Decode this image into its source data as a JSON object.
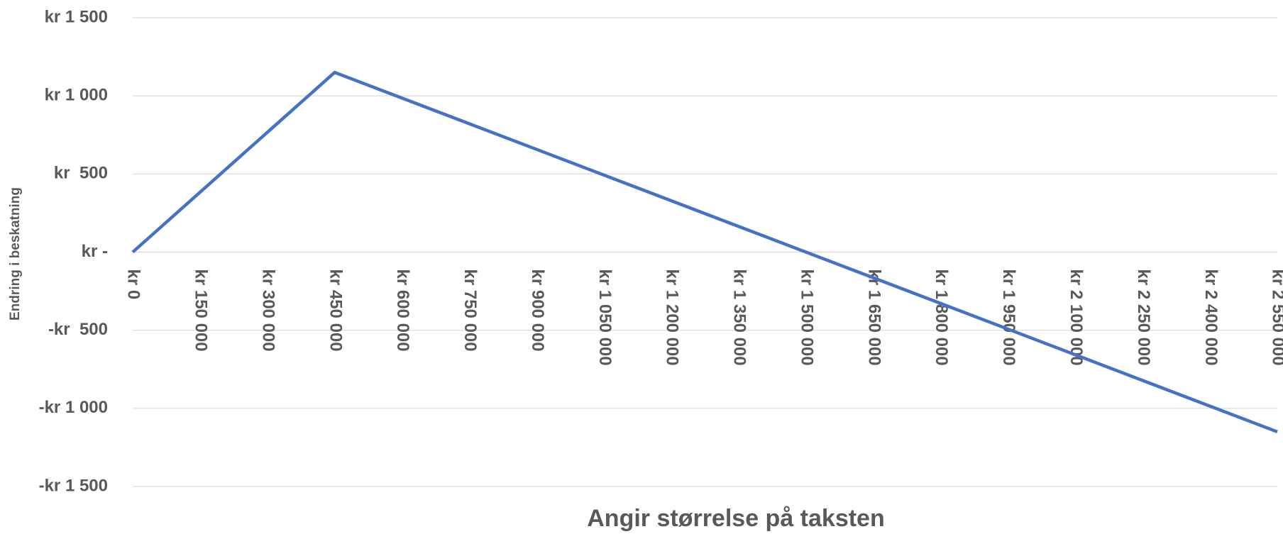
{
  "chart_data": {
    "type": "line",
    "x_label": "Angir størrelse på taksten",
    "y_label": "Endring i beskatning",
    "x": [
      0,
      450000,
      2550000
    ],
    "values": [
      0,
      1150,
      -1150
    ],
    "color": "#4472c4",
    "xlim": [
      0,
      2550000
    ],
    "xticks": [
      {
        "value": 0,
        "label": "kr 0"
      },
      {
        "value": 150000,
        "label": "kr 150 000"
      },
      {
        "value": 300000,
        "label": "kr 300 000"
      },
      {
        "value": 450000,
        "label": "kr 450 000"
      },
      {
        "value": 600000,
        "label": "kr 600 000"
      },
      {
        "value": 750000,
        "label": "kr 750 000"
      },
      {
        "value": 900000,
        "label": "kr 900 000"
      },
      {
        "value": 1050000,
        "label": "kr 1 050 000"
      },
      {
        "value": 1200000,
        "label": "kr 1 200 000"
      },
      {
        "value": 1350000,
        "label": "kr 1 350 000"
      },
      {
        "value": 1500000,
        "label": "kr 1 500 000"
      },
      {
        "value": 1650000,
        "label": "kr 1 650 000"
      },
      {
        "value": 1800000,
        "label": "kr 1 800 000"
      },
      {
        "value": 1950000,
        "label": "kr 1 950 000"
      },
      {
        "value": 2100000,
        "label": "kr 2 100 000"
      },
      {
        "value": 2250000,
        "label": "kr 2 250 000"
      },
      {
        "value": 2400000,
        "label": "kr 2 400 000"
      },
      {
        "value": 2550000,
        "label": "kr 2 550 000"
      }
    ],
    "ylim": [
      -1500,
      1500
    ],
    "yticks": [
      {
        "value": -1500,
        "label": "-kr 1 500"
      },
      {
        "value": -1000,
        "label": "-kr 1 000"
      },
      {
        "value": -500,
        "label": "-kr  500"
      },
      {
        "value": 0,
        "label": "kr -"
      },
      {
        "value": 500,
        "label": "kr  500"
      },
      {
        "value": 1000,
        "label": "kr 1 000"
      },
      {
        "value": 1500,
        "label": "kr 1 500"
      }
    ],
    "grid": true
  }
}
